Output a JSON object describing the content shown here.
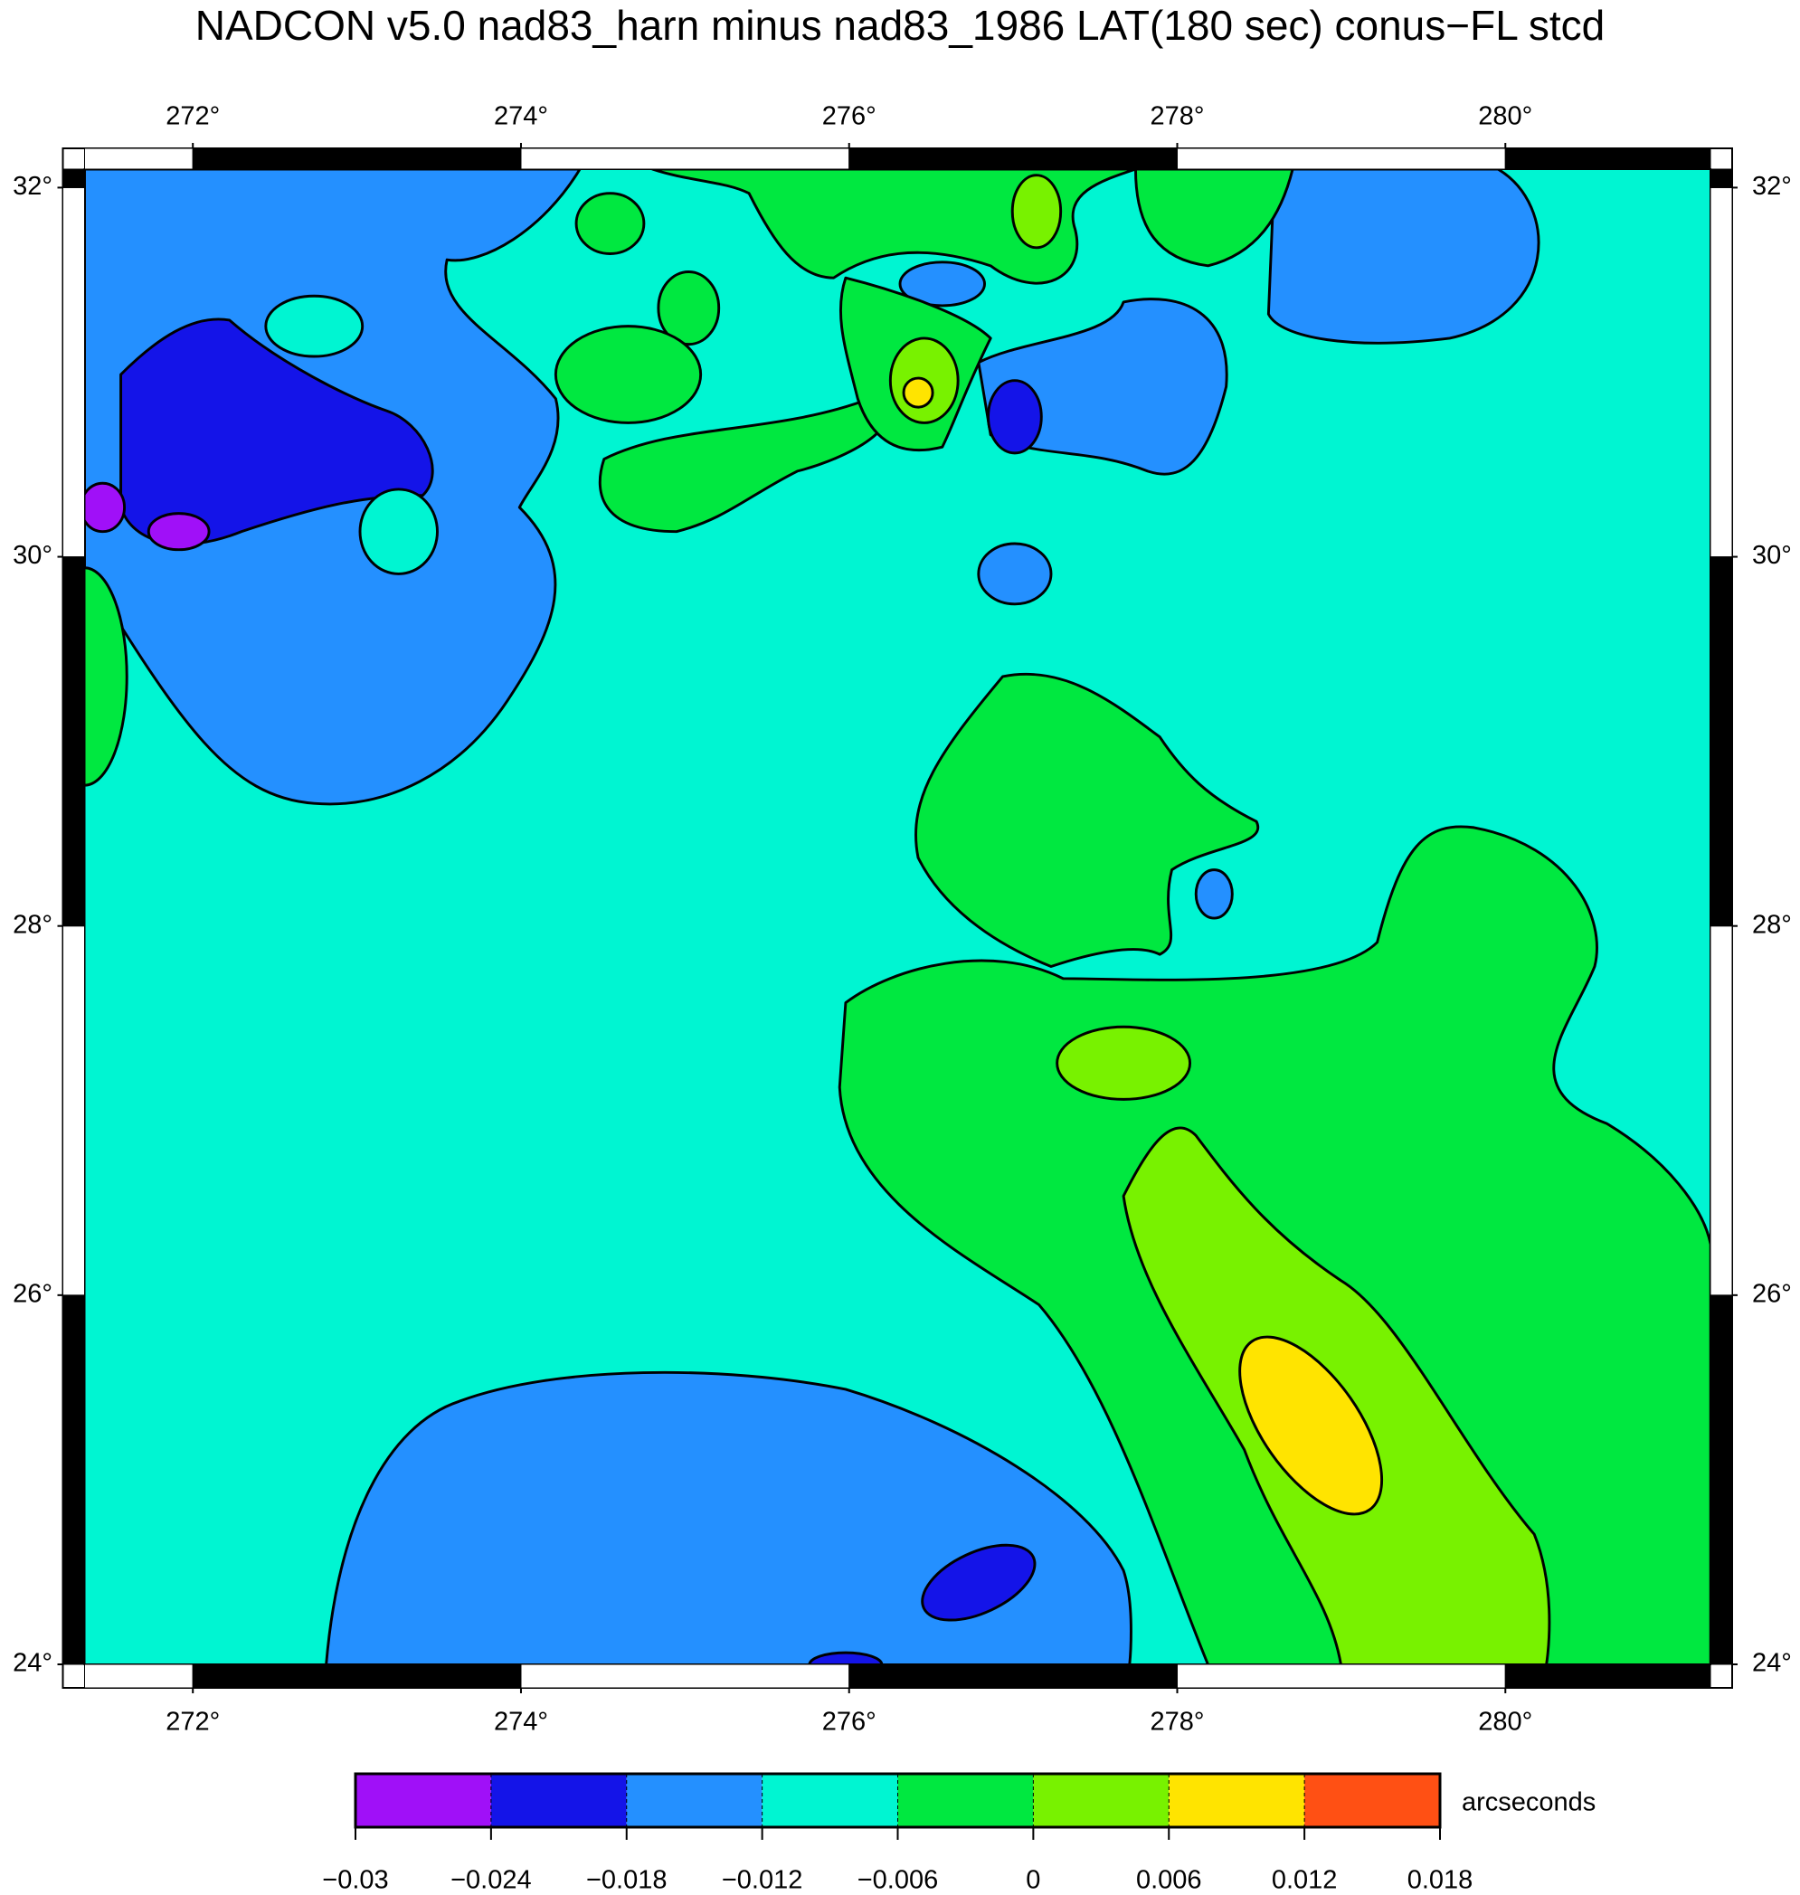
{
  "map": {
    "title": "NADCON v5.0 nad83_harn minus nad83_1986 LAT(180 sec) conus−FL stcd",
    "xlim": [
      271.34,
      281.25
    ],
    "ylim": [
      24,
      32.1
    ],
    "lon_ticks": [
      {
        "value": 272,
        "label": "272°"
      },
      {
        "value": 274,
        "label": "274°"
      },
      {
        "value": 276,
        "label": "276°"
      },
      {
        "value": 278,
        "label": "278°"
      },
      {
        "value": 280,
        "label": "280°"
      }
    ],
    "lat_ticks": [
      {
        "value": 24,
        "label": "24°"
      },
      {
        "value": 26,
        "label": "26°"
      },
      {
        "value": 28,
        "label": "28°"
      },
      {
        "value": 30,
        "label": "30°"
      },
      {
        "value": 32,
        "label": "32°"
      }
    ],
    "colorbar": {
      "label": "arcseconds",
      "ticks": [
        {
          "value": -0.03,
          "label": "−0.03"
        },
        {
          "value": -0.024,
          "label": "−0.024"
        },
        {
          "value": -0.018,
          "label": "−0.018"
        },
        {
          "value": -0.012,
          "label": "−0.012"
        },
        {
          "value": -0.006,
          "label": "−0.006"
        },
        0,
        0.006,
        0.012,
        0.018
      ],
      "colors": [
        "#a010f8",
        "#1414e8",
        "#2490ff",
        "#00f5d2",
        "#00e840",
        "#78f200",
        "#ffe400",
        "#ff5014"
      ]
    }
  }
}
